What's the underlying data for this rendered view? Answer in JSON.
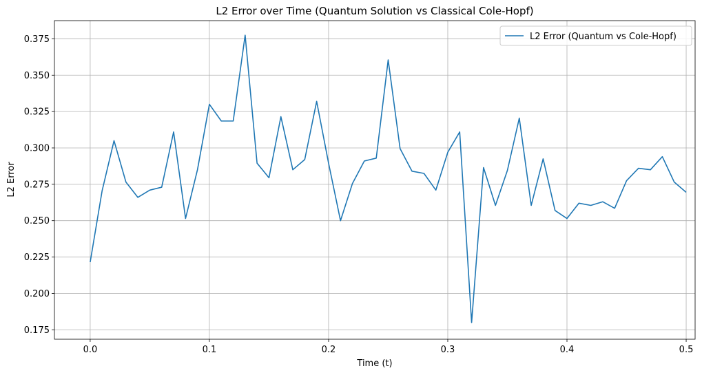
{
  "chart_data": {
    "type": "line",
    "title": "L2 Error over Time (Quantum Solution vs Classical Cole-Hopf)",
    "xlabel": "Time (t)",
    "ylabel": "L2 Error",
    "xlim": [
      -0.03,
      0.5075
    ],
    "ylim": [
      0.1685,
      0.3875
    ],
    "xticks": [
      0.0,
      0.1,
      0.2,
      0.3,
      0.4,
      0.5
    ],
    "xtick_labels": [
      "0.0",
      "0.1",
      "0.2",
      "0.3",
      "0.4",
      "0.5"
    ],
    "yticks": [
      0.175,
      0.2,
      0.225,
      0.25,
      0.275,
      0.3,
      0.325,
      0.35,
      0.375
    ],
    "ytick_labels": [
      "0.175",
      "0.200",
      "0.225",
      "0.250",
      "0.275",
      "0.300",
      "0.325",
      "0.350",
      "0.375"
    ],
    "grid": true,
    "legend_position": "top-right",
    "series": [
      {
        "name": "L2 Error (Quantum vs Cole-Hopf)",
        "color": "#1f77b4",
        "x": [
          0.0,
          0.01,
          0.02,
          0.03,
          0.04,
          0.05,
          0.06,
          0.07,
          0.08,
          0.09,
          0.1,
          0.11,
          0.12,
          0.13,
          0.14,
          0.15,
          0.16,
          0.17,
          0.18,
          0.19,
          0.2,
          0.21,
          0.22,
          0.23,
          0.24,
          0.25,
          0.26,
          0.27,
          0.28,
          0.29,
          0.3,
          0.31,
          0.32,
          0.33,
          0.34,
          0.35,
          0.36,
          0.37,
          0.38,
          0.39,
          0.4,
          0.41,
          0.42,
          0.43,
          0.44,
          0.45,
          0.46,
          0.47,
          0.48,
          0.49,
          0.5
        ],
        "y": [
          0.2215,
          0.2705,
          0.305,
          0.2765,
          0.266,
          0.271,
          0.273,
          0.311,
          0.2515,
          0.285,
          0.33,
          0.3185,
          0.3185,
          0.3775,
          0.2895,
          0.2795,
          0.3215,
          0.285,
          0.292,
          0.332,
          0.2895,
          0.25,
          0.2755,
          0.291,
          0.293,
          0.3605,
          0.2995,
          0.284,
          0.2825,
          0.271,
          0.297,
          0.311,
          0.18,
          0.2865,
          0.2605,
          0.2845,
          0.3205,
          0.2605,
          0.2925,
          0.257,
          0.2515,
          0.262,
          0.2605,
          0.263,
          0.2585,
          0.2775,
          0.286,
          0.285,
          0.294,
          0.2765,
          0.2695
        ]
      }
    ]
  }
}
